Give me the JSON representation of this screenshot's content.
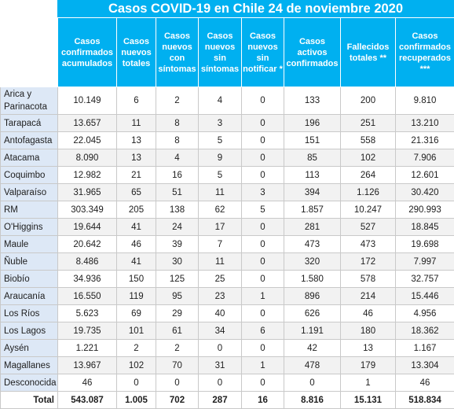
{
  "title": "Casos COVID-19 en Chile 24 de noviembre 2020",
  "headers": [
    "Casos confirmados acumulados",
    "Casos nuevos totales",
    "Casos nuevos con síntomas",
    "Casos nuevos sin síntomas",
    "Casos nuevos sin notificar *",
    "Casos activos confirmados",
    "Fallecidos totales **",
    "Casos confirmados recuperados ***"
  ],
  "rows": [
    {
      "region": "Arica y Parinacota",
      "cells": [
        "10.149",
        "6",
        "2",
        "4",
        "0",
        "133",
        "200",
        "9.810"
      ]
    },
    {
      "region": "Tarapacá",
      "cells": [
        "13.657",
        "11",
        "8",
        "3",
        "0",
        "196",
        "251",
        "13.210"
      ]
    },
    {
      "region": "Antofagasta",
      "cells": [
        "22.045",
        "13",
        "8",
        "5",
        "0",
        "151",
        "558",
        "21.316"
      ]
    },
    {
      "region": "Atacama",
      "cells": [
        "8.090",
        "13",
        "4",
        "9",
        "0",
        "85",
        "102",
        "7.906"
      ]
    },
    {
      "region": "Coquimbo",
      "cells": [
        "12.982",
        "21",
        "16",
        "5",
        "0",
        "113",
        "264",
        "12.601"
      ]
    },
    {
      "region": "Valparaíso",
      "cells": [
        "31.965",
        "65",
        "51",
        "11",
        "3",
        "394",
        "1.126",
        "30.420"
      ]
    },
    {
      "region": "RM",
      "cells": [
        "303.349",
        "205",
        "138",
        "62",
        "5",
        "1.857",
        "10.247",
        "290.993"
      ]
    },
    {
      "region": "O'Higgins",
      "cells": [
        "19.644",
        "41",
        "24",
        "17",
        "0",
        "281",
        "527",
        "18.845"
      ]
    },
    {
      "region": "Maule",
      "cells": [
        "20.642",
        "46",
        "39",
        "7",
        "0",
        "473",
        "473",
        "19.698"
      ]
    },
    {
      "region": "Ñuble",
      "cells": [
        "8.486",
        "41",
        "30",
        "11",
        "0",
        "320",
        "172",
        "7.997"
      ]
    },
    {
      "region": "Biobío",
      "cells": [
        "34.936",
        "150",
        "125",
        "25",
        "0",
        "1.580",
        "578",
        "32.757"
      ]
    },
    {
      "region": "Araucanía",
      "cells": [
        "16.550",
        "119",
        "95",
        "23",
        "1",
        "896",
        "214",
        "15.446"
      ]
    },
    {
      "region": "Los Ríos",
      "cells": [
        "5.623",
        "69",
        "29",
        "40",
        "0",
        "626",
        "46",
        "4.956"
      ]
    },
    {
      "region": "Los Lagos",
      "cells": [
        "19.735",
        "101",
        "61",
        "34",
        "6",
        "1.191",
        "180",
        "18.362"
      ]
    },
    {
      "region": "Aysén",
      "cells": [
        "1.221",
        "2",
        "2",
        "0",
        "0",
        "42",
        "13",
        "1.167"
      ]
    },
    {
      "region": "Magallanes",
      "cells": [
        "13.967",
        "102",
        "70",
        "31",
        "1",
        "478",
        "179",
        "13.304"
      ]
    },
    {
      "region": "Desconocida",
      "cells": [
        "46",
        "0",
        "0",
        "0",
        "0",
        "0",
        "1",
        "46"
      ]
    }
  ],
  "total": {
    "label": "Total",
    "cells": [
      "543.087",
      "1.005",
      "702",
      "287",
      "16",
      "8.816",
      "15.131",
      "518.834"
    ]
  }
}
